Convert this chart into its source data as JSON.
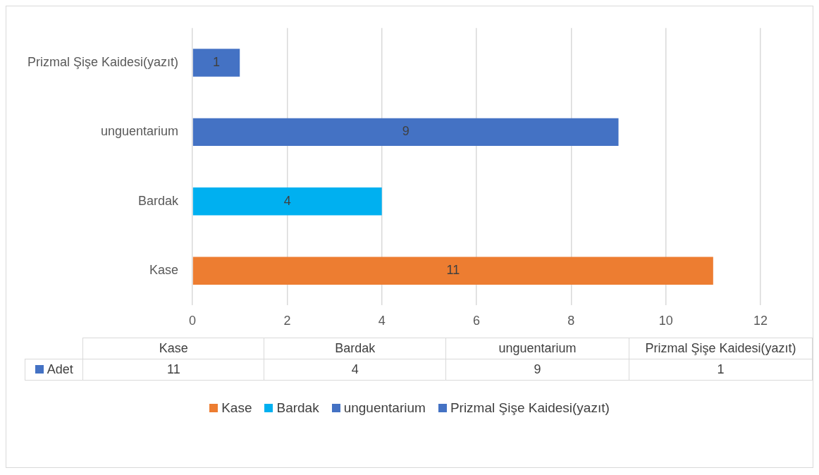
{
  "chart_data": {
    "type": "bar",
    "orientation": "horizontal",
    "categories": [
      "Prizmal Şişe Kaidesi(yazıt)",
      "unguentarium",
      "Bardak",
      "Kase"
    ],
    "series": [
      {
        "name": "Adet",
        "color": "#4472c4",
        "values": [
          1,
          9,
          4,
          11
        ],
        "colors": [
          "#4472c4",
          "#4472c4",
          "#00b0f0",
          "#ed7d31"
        ]
      }
    ],
    "xlim": [
      0,
      12
    ],
    "xticks": [
      0,
      2,
      4,
      6,
      8,
      10,
      12
    ],
    "annotations": [
      "11",
      "4",
      "9",
      "1"
    ],
    "grid": "x",
    "data_labels": true,
    "legend": "bottom"
  }
}
